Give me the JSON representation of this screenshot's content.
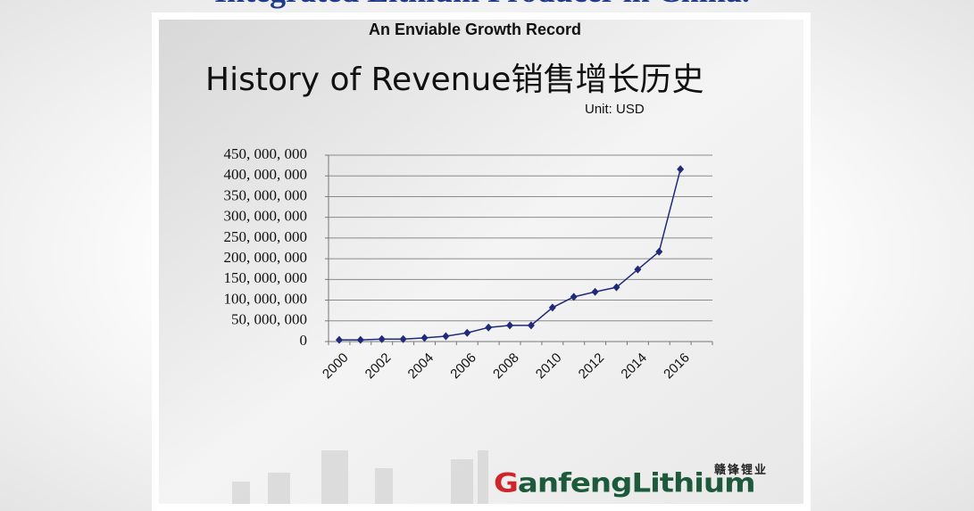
{
  "slide_title": "Integrated Lithium Producer in China.",
  "panel": {
    "heading": "An Enviable Growth Record",
    "unit": "Unit:  USD"
  },
  "logo": {
    "text": "GanfengLithium",
    "chinese": "赣锋锂业"
  },
  "chart_data": {
    "type": "line",
    "title": "History of Revenue销售增长历史",
    "categories": [
      "2000",
      null,
      "2002",
      null,
      "2004",
      null,
      "2006",
      null,
      "2008",
      null,
      "2010",
      null,
      "2012",
      null,
      "2014",
      null,
      "2016"
    ],
    "series": [
      {
        "name": "Revenue",
        "color": "#1f2a7a",
        "values": [
          4000000,
          4000000,
          6000000,
          6000000,
          9000000,
          13000000,
          21000000,
          34000000,
          39000000,
          39000000,
          82000000,
          108000000,
          120000000,
          131000000,
          174000000,
          217000000,
          416000000
        ]
      }
    ],
    "ylim": [
      0,
      450000000
    ],
    "yticks": [
      0,
      {
        "value": 50000000,
        "label": "50, 000, 000"
      },
      {
        "value": 100000000,
        "label": "100, 000, 000"
      },
      {
        "value": 150000000,
        "label": "150, 000, 000"
      },
      {
        "value": 200000000,
        "label": "200, 000, 000"
      },
      {
        "value": 250000000,
        "label": "250, 000, 000"
      },
      {
        "value": 300000000,
        "label": "300, 000, 000"
      },
      {
        "value": 350000000,
        "label": "350, 000, 000"
      },
      {
        "value": 400000000,
        "label": "400, 000, 000"
      },
      {
        "value": 450000000,
        "label": "450, 000, 000"
      }
    ],
    "grid": true
  }
}
